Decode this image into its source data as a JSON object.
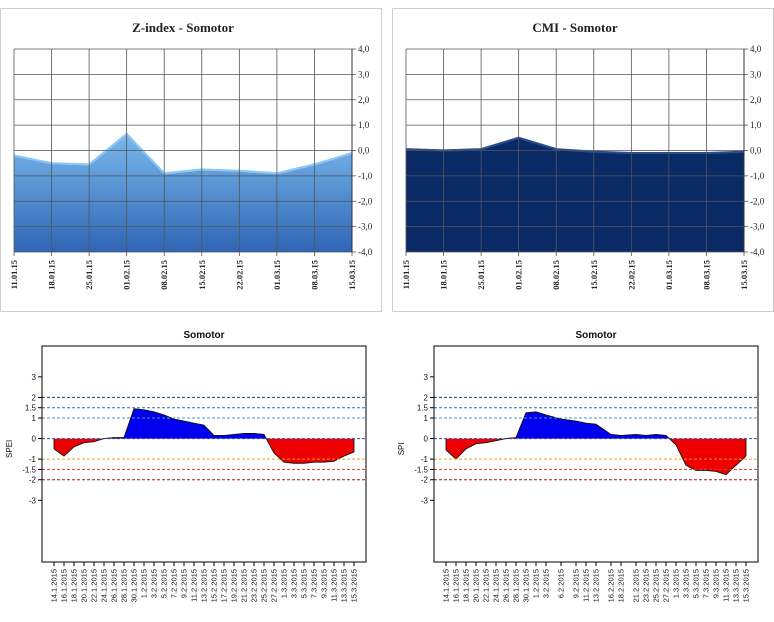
{
  "chart_data": [
    {
      "type": "area",
      "title": "Z-index - Somotor",
      "categories": [
        "11.01.15",
        "18.01.15",
        "25.01.15",
        "01.02.15",
        "08.02.15",
        "15.02.15",
        "22.02.15",
        "01.03.15",
        "08.03.15",
        "15.03.15"
      ],
      "values": [
        -0.2,
        -0.5,
        -0.55,
        0.65,
        -0.9,
        -0.75,
        -0.8,
        -0.9,
        -0.55,
        -0.1
      ],
      "ylim": [
        -4,
        4
      ],
      "yticks": [
        "4,0",
        "3,0",
        "2,0",
        "1,0",
        "0,0",
        "-1,0",
        "-2,0",
        "-3,0",
        "-4,0"
      ],
      "grid": true,
      "colors": {
        "fill_top": "#7ab8ec",
        "fill_bottom": "#2f66b5",
        "line": "#8cc8f5"
      }
    },
    {
      "type": "area",
      "title": "CMI - Somotor",
      "categories": [
        "11.01.15",
        "18.01.15",
        "25.01.15",
        "01.02.15",
        "08.02.15",
        "15.02.15",
        "22.02.15",
        "01.03.15",
        "08.03.15",
        "15.03.15"
      ],
      "values": [
        0.05,
        0.0,
        0.05,
        0.5,
        0.05,
        -0.05,
        -0.1,
        -0.1,
        -0.1,
        -0.05
      ],
      "ylim": [
        -4,
        4
      ],
      "yticks": [
        "4,0",
        "3,0",
        "2,0",
        "1,0",
        "0,0",
        "-1,0",
        "-2,0",
        "-3,0",
        "-4,0"
      ],
      "grid": true,
      "colors": {
        "fill": "#0a2a66",
        "line": "#274d8f"
      }
    },
    {
      "type": "area",
      "title": "Somotor",
      "ylabel": "SPEI",
      "ylim": [
        -6,
        4.5
      ],
      "yticks": [
        "3",
        "2",
        "1.5",
        "1",
        "0",
        "-1",
        "-1.5",
        "-2",
        "-3"
      ],
      "ytick_values": [
        3,
        2,
        1.5,
        1,
        0,
        -1,
        -1.5,
        -2,
        -3
      ],
      "categories": [
        "14.1.2015",
        "16.1.2015",
        "18.1.2015",
        "20.1.2015",
        "22.1.2015",
        "24.1.2015",
        "26.1.2015",
        "28.1.2015",
        "30.1.2015",
        "1.2.2015",
        "3.2.2015",
        "5.2.2015",
        "7.2.2015",
        "9.2.2015",
        "11.2.2015",
        "13.2.2015",
        "15.2.2015",
        "17.2.2015",
        "19.2.2015",
        "21.2.2015",
        "23.2.2015",
        "25.2.2015",
        "27.2.2015",
        "1.3.2015",
        "3.3.2015",
        "5.3.2015",
        "7.3.2015",
        "9.3.2015",
        "11.3.2015",
        "13.3.2015",
        "15.3.2015"
      ],
      "x": [
        0,
        2,
        4,
        6,
        8,
        10,
        12,
        14,
        16,
        18,
        20,
        22,
        24,
        26,
        28,
        30,
        32,
        34,
        36,
        38,
        40,
        42,
        44,
        46,
        48,
        50,
        52,
        54,
        56,
        58,
        60
      ],
      "values": [
        -0.5,
        -0.85,
        -0.4,
        -0.2,
        -0.15,
        0.0,
        0.05,
        0.05,
        1.45,
        1.4,
        1.3,
        1.15,
        0.95,
        0.85,
        0.75,
        0.65,
        0.15,
        0.15,
        0.2,
        0.25,
        0.25,
        0.2,
        -0.7,
        -1.15,
        -1.2,
        -1.2,
        -1.15,
        -1.15,
        -1.1,
        -0.85,
        -0.65
      ],
      "reference_lines": [
        2,
        1.5,
        1,
        0,
        -1,
        -1.5,
        -2
      ],
      "colors": {
        "positive": "#0000ee",
        "negative": "#ee0000",
        "ref_2": "#1f3a93",
        "ref_1_5": "#2f6fb7",
        "ref_1": "#4a9ad6",
        "ref_0": "#3344aa",
        "ref_m1": "#f0a020",
        "ref_m1_5": "#d04020",
        "ref_m2": "#a01818"
      }
    },
    {
      "type": "area",
      "title": "Somotor",
      "ylabel": "SPI",
      "ylim": [
        -6,
        4.5
      ],
      "yticks": [
        "3",
        "2",
        "1.5",
        "1",
        "0",
        "-1",
        "-1.5",
        "-2",
        "-3"
      ],
      "ytick_values": [
        3,
        2,
        1.5,
        1,
        0,
        -1,
        -1.5,
        -2,
        -3
      ],
      "categories": [
        "14.1.2015",
        "16.1.2015",
        "18.1.2015",
        "20.1.2015",
        "22.1.2015",
        "24.1.2015",
        "26.1.2015",
        "28.1.2015",
        "30.1.2015",
        "1.2.2015",
        "3.2.2015",
        "6.2.2015",
        "9.2.2015",
        "11.2.2015",
        "13.2.2015",
        "16.2.2015",
        "18.2.2015",
        "21.2.2015",
        "23.2.2015",
        "25.2.2015",
        "27.2.2015",
        "1.3.2015",
        "3.3.2015",
        "5.3.2015",
        "7.3.2015",
        "9.3.2015",
        "11.3.2015",
        "13.3.2015",
        "15.3.2015"
      ],
      "x": [
        0,
        2,
        4,
        6,
        8,
        10,
        12,
        14,
        16,
        18,
        20,
        23,
        26,
        28,
        30,
        33,
        35,
        38,
        40,
        42,
        44,
        46,
        48,
        50,
        52,
        54,
        56,
        58,
        60
      ],
      "values": [
        -0.55,
        -1.0,
        -0.5,
        -0.25,
        -0.2,
        -0.1,
        0.0,
        0.05,
        1.25,
        1.3,
        1.15,
        0.95,
        0.85,
        0.75,
        0.7,
        0.2,
        0.15,
        0.2,
        0.15,
        0.2,
        0.15,
        -0.3,
        -1.3,
        -1.55,
        -1.55,
        -1.6,
        -1.75,
        -1.3,
        -0.85
      ],
      "reference_lines": [
        2,
        1.5,
        1,
        0,
        -1,
        -1.5,
        -2
      ],
      "colors": {
        "positive": "#0000ee",
        "negative": "#ee0000",
        "ref_2": "#1f3a93",
        "ref_1_5": "#2f6fb7",
        "ref_1": "#4a9ad6",
        "ref_0": "#3344aa",
        "ref_m1": "#f0a020",
        "ref_m1_5": "#d04020",
        "ref_m2": "#a01818"
      }
    }
  ]
}
